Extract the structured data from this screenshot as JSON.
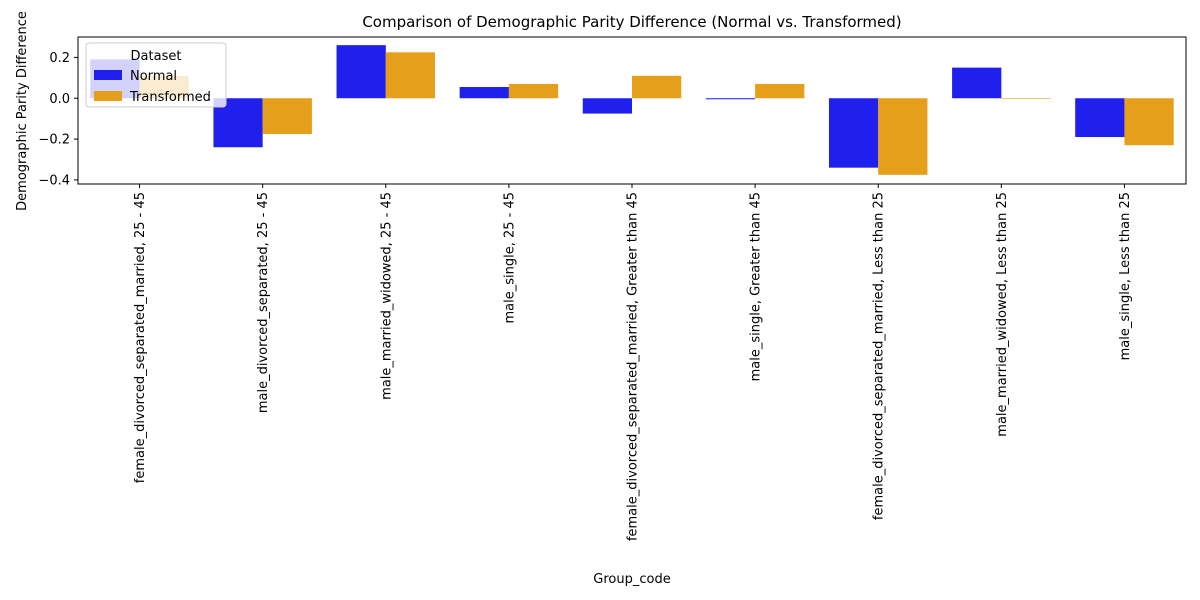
{
  "chart_data": {
    "type": "bar",
    "title": "Comparison of Demographic Parity Difference (Normal vs. Transformed)",
    "xlabel": "Group_code",
    "ylabel": "Demographic Parity Difference",
    "ylim": [
      -0.42,
      0.3
    ],
    "yticks": [
      -0.4,
      -0.2,
      0.0,
      0.2
    ],
    "ytick_labels": [
      "−0.4",
      "−0.2",
      "0.0",
      "0.2"
    ],
    "grid": false,
    "legend": {
      "title": "Dataset",
      "placement": "top-left"
    },
    "categories": [
      "female_divorced_separated_married, 25 - 45",
      "male_divorced_separated, 25 - 45",
      "male_married_widowed, 25 - 45",
      "male_single, 25 - 45",
      "female_divorced_separated_married, Greater than 45",
      "male_single, Greater than 45",
      "female_divorced_separated_married, Less than 25",
      "male_married_widowed, Less than 25",
      "male_single, Less than 25"
    ],
    "series": [
      {
        "name": "Normal",
        "color": "#1f1fee",
        "values": [
          0.19,
          -0.24,
          0.26,
          0.055,
          -0.075,
          -0.005,
          -0.34,
          0.15,
          -0.19
        ]
      },
      {
        "name": "Transformed",
        "color": "#e69f1a",
        "values": [
          0.11,
          -0.175,
          0.225,
          0.07,
          0.11,
          0.07,
          -0.375,
          0.0,
          -0.23
        ]
      }
    ]
  }
}
